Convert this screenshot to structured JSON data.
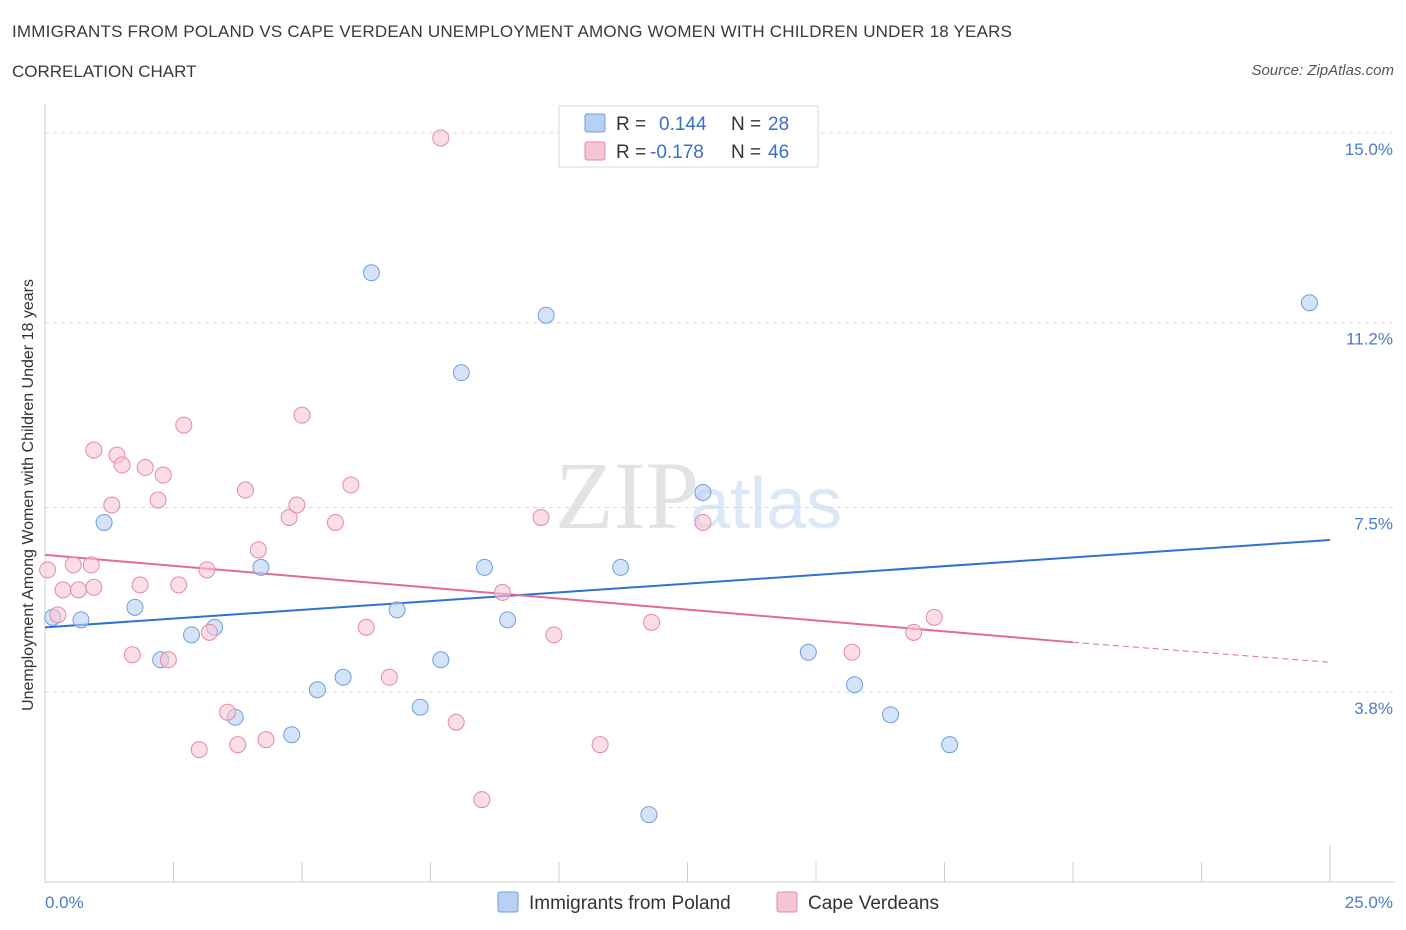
{
  "header": {
    "title": "IMMIGRANTS FROM POLAND VS CAPE VERDEAN UNEMPLOYMENT AMONG WOMEN WITH CHILDREN UNDER 18 YEARS",
    "subtitle": "CORRELATION CHART",
    "source": "Source: ZipAtlas.com"
  },
  "watermark": {
    "zip": "ZIP",
    "atlas": "atlas"
  },
  "colors": {
    "poland_fill": "#b8d0f3",
    "poland_stroke": "#6f9fdc",
    "poland_line": "#2f72cf",
    "cape_fill": "#f7c6d4",
    "cape_stroke": "#e48aa6",
    "cape_line": "#e06b96",
    "tick_text": "#4a7cc7",
    "grid": "#d9d9d9"
  },
  "legend": {
    "rows": [
      {
        "r_label": "R =",
        "r_value": "0.144",
        "n_label": "N =",
        "n_value": "28"
      },
      {
        "r_label": "R =",
        "r_value": "-0.178",
        "n_label": "N =",
        "n_value": "46"
      }
    ]
  },
  "chart_data": {
    "type": "scatter",
    "title": "IMMIGRANTS FROM POLAND VS CAPE VERDEAN UNEMPLOYMENT AMONG WOMEN WITH CHILDREN UNDER 18 YEARS",
    "ylabel": "Unemployment Among Women with Children Under 18 years",
    "xlabel": "",
    "xlim": [
      0,
      25
    ],
    "ylim": [
      0,
      15.3
    ],
    "x_tick_labels": [
      "0.0%",
      "25.0%"
    ],
    "y_ticks": [
      3.8,
      7.5,
      11.2,
      15.0
    ],
    "y_tick_labels": [
      "3.8%",
      "7.5%",
      "11.2%",
      "15.0%"
    ],
    "grid": "horizontal dashed",
    "legend_position": "top-center",
    "series": [
      {
        "name": "Immigrants from Poland",
        "points": [
          [
            0.15,
            5.3
          ],
          [
            0.7,
            5.25
          ],
          [
            1.15,
            7.2
          ],
          [
            1.75,
            5.5
          ],
          [
            2.25,
            4.45
          ],
          [
            2.85,
            4.95
          ],
          [
            3.3,
            5.1
          ],
          [
            3.7,
            3.3
          ],
          [
            4.2,
            6.3
          ],
          [
            4.8,
            2.95
          ],
          [
            5.3,
            3.85
          ],
          [
            5.8,
            4.1
          ],
          [
            6.35,
            12.2
          ],
          [
            6.85,
            5.45
          ],
          [
            7.3,
            3.5
          ],
          [
            7.7,
            4.45
          ],
          [
            8.1,
            10.2
          ],
          [
            8.55,
            6.3
          ],
          [
            9.0,
            5.25
          ],
          [
            9.75,
            11.35
          ],
          [
            11.2,
            6.3
          ],
          [
            11.75,
            1.35
          ],
          [
            12.8,
            7.8
          ],
          [
            14.85,
            4.6
          ],
          [
            15.75,
            3.95
          ],
          [
            16.45,
            3.35
          ],
          [
            17.6,
            2.75
          ],
          [
            24.6,
            11.6
          ]
        ],
        "trend": [
          [
            0,
            5.1
          ],
          [
            25,
            6.85
          ]
        ]
      },
      {
        "name": "Cape Verdeans",
        "points": [
          [
            0.05,
            6.25
          ],
          [
            0.25,
            5.35
          ],
          [
            0.35,
            5.85
          ],
          [
            0.55,
            6.35
          ],
          [
            0.65,
            5.85
          ],
          [
            0.95,
            5.9
          ],
          [
            0.9,
            6.35
          ],
          [
            0.95,
            8.65
          ],
          [
            1.3,
            7.55
          ],
          [
            1.4,
            8.55
          ],
          [
            1.5,
            8.35
          ],
          [
            1.7,
            4.55
          ],
          [
            1.85,
            5.95
          ],
          [
            1.95,
            8.3
          ],
          [
            2.2,
            7.65
          ],
          [
            2.3,
            8.15
          ],
          [
            2.4,
            4.45
          ],
          [
            2.6,
            5.95
          ],
          [
            2.7,
            9.15
          ],
          [
            3.0,
            2.65
          ],
          [
            3.15,
            6.25
          ],
          [
            3.2,
            5.0
          ],
          [
            3.55,
            3.4
          ],
          [
            3.75,
            2.75
          ],
          [
            3.9,
            7.85
          ],
          [
            4.15,
            6.65
          ],
          [
            4.3,
            2.85
          ],
          [
            4.75,
            7.3
          ],
          [
            4.9,
            7.55
          ],
          [
            5.0,
            9.35
          ],
          [
            5.65,
            7.2
          ],
          [
            5.95,
            7.95
          ],
          [
            6.25,
            5.1
          ],
          [
            6.7,
            4.1
          ],
          [
            7.7,
            14.9
          ],
          [
            8.0,
            3.2
          ],
          [
            8.5,
            1.65
          ],
          [
            8.9,
            5.8
          ],
          [
            9.65,
            7.3
          ],
          [
            9.9,
            4.95
          ],
          [
            10.8,
            2.75
          ],
          [
            11.8,
            5.2
          ],
          [
            12.8,
            7.2
          ],
          [
            15.7,
            4.6
          ],
          [
            16.9,
            5.0
          ],
          [
            17.3,
            5.3
          ]
        ],
        "trend": [
          [
            0,
            6.55
          ],
          [
            20,
            4.8
          ]
        ],
        "trend_dashed": [
          [
            20,
            4.8
          ],
          [
            25,
            4.4
          ]
        ]
      }
    ]
  },
  "bottom_legend": {
    "items": [
      {
        "label": "Immigrants from Poland"
      },
      {
        "label": "Cape Verdeans"
      }
    ]
  }
}
